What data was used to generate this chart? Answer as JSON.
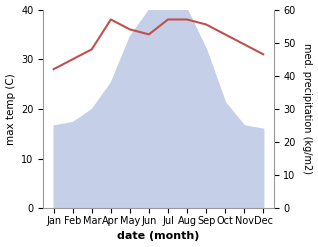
{
  "months": [
    "Jan",
    "Feb",
    "Mar",
    "Apr",
    "May",
    "Jun",
    "Jul",
    "Aug",
    "Sep",
    "Oct",
    "Nov",
    "Dec"
  ],
  "temperature": [
    28,
    30,
    32,
    38,
    36,
    35,
    38,
    38,
    37,
    35,
    33,
    31
  ],
  "precipitation": [
    25,
    26,
    30,
    38,
    52,
    60,
    62,
    60,
    48,
    32,
    25,
    24
  ],
  "temp_color": "#c0504d",
  "precip_fill_color": "#c5cfe8",
  "ylabel_left": "max temp (C)",
  "ylabel_right": "med. precipitation (kg/m2)",
  "xlabel": "date (month)",
  "ylim_left": [
    0,
    40
  ],
  "ylim_right": [
    0,
    60
  ],
  "yticks_left": [
    0,
    10,
    20,
    30,
    40
  ],
  "yticks_right": [
    0,
    10,
    20,
    30,
    40,
    50,
    60
  ],
  "background_color": "#ffffff"
}
